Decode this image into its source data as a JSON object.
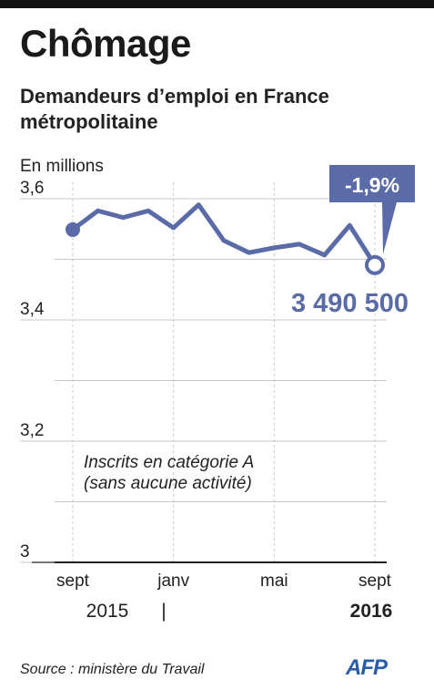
{
  "header": {
    "title": "Chômage",
    "subtitle": "Demandeurs d’emploi en France métropolitaine",
    "unit": "En millions"
  },
  "chart_data": {
    "type": "line",
    "title": "Chômage",
    "subtitle": "Demandeurs d’emploi en France métropolitaine",
    "ylabel": "En millions",
    "ylim": [
      3,
      3.6
    ],
    "yticks": [
      3,
      3.2,
      3.4,
      3.6
    ],
    "ytick_labels": [
      "3",
      "3,2",
      "3,4",
      "3,6"
    ],
    "grid": true,
    "x": [
      "2015-09",
      "2015-10",
      "2015-11",
      "2015-12",
      "2016-01",
      "2016-02",
      "2016-03",
      "2016-04",
      "2016-05",
      "2016-06",
      "2016-07",
      "2016-08",
      "2016-09"
    ],
    "xtick_labels": [
      {
        "x": "2015-09",
        "label": "sept"
      },
      {
        "x": "2016-01",
        "label": "janv"
      },
      {
        "x": "2016-05",
        "label": "mai"
      },
      {
        "x": "2016-09",
        "label": "sept"
      }
    ],
    "year_labels": [
      {
        "x": "2015-09",
        "label": "2015"
      },
      {
        "x": "2016-09",
        "label": "2016"
      }
    ],
    "year_separator": "|",
    "series": [
      {
        "values": [
          3.549,
          3.58,
          3.569,
          3.58,
          3.552,
          3.59,
          3.531,
          3.511,
          3.519,
          3.525,
          3.507,
          3.556,
          3.4905
        ]
      }
    ],
    "annotations": [
      {
        "text": "3 490 500",
        "x": "2016-09"
      },
      {
        "text": "-1,9%",
        "x": "2016-09"
      },
      {
        "text": "Inscrits en catégorie A\n(sans aucune activité)"
      }
    ]
  },
  "footer": {
    "source": "Source : ministère du Travail",
    "logo": "AFP"
  },
  "colors": {
    "series": "#5b6ba8",
    "callout": "#5b6ba8",
    "grid": "#c8c8c8",
    "axis": "#222222"
  }
}
